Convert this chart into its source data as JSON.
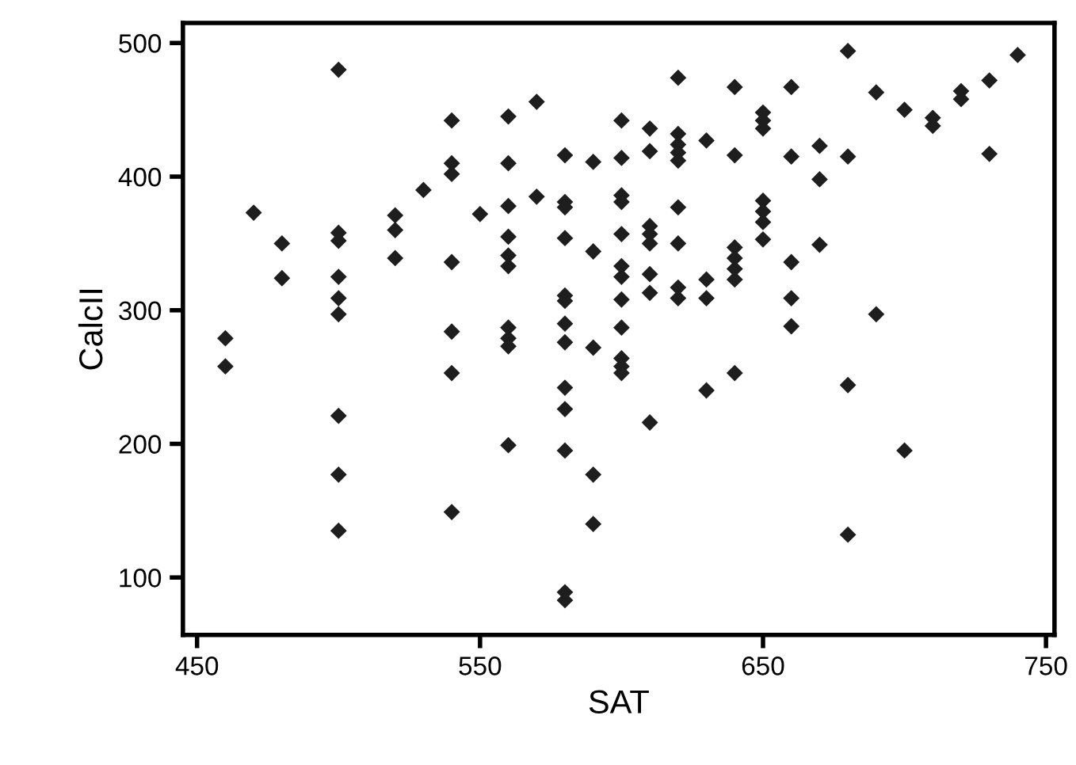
{
  "chart_data": {
    "type": "scatter",
    "xlabel": "SAT",
    "ylabel": "CalcII",
    "marker": "diamond",
    "grid": false,
    "legend": false,
    "xlim": [
      445,
      753
    ],
    "ylim": [
      57,
      515
    ],
    "xticks": [
      450,
      550,
      650,
      750
    ],
    "yticks": [
      100,
      200,
      300,
      400,
      500
    ],
    "series": [
      {
        "color": "#1e1e1e",
        "x": [
          460,
          460,
          470,
          480,
          480,
          500,
          500,
          500,
          500,
          500,
          500,
          500,
          500,
          500,
          520,
          520,
          520,
          530,
          540,
          540,
          540,
          540,
          540,
          540,
          540,
          550,
          560,
          560,
          560,
          560,
          560,
          560,
          560,
          560,
          560,
          560,
          570,
          570,
          580,
          580,
          580,
          580,
          580,
          580,
          580,
          580,
          580,
          580,
          580,
          580,
          580,
          590,
          590,
          590,
          590,
          590,
          600,
          600,
          600,
          600,
          600,
          600,
          600,
          600,
          600,
          600,
          600,
          600,
          610,
          610,
          610,
          610,
          610,
          610,
          610,
          610,
          620,
          620,
          620,
          620,
          620,
          620,
          620,
          620,
          620,
          630,
          630,
          630,
          630,
          640,
          640,
          640,
          640,
          640,
          640,
          640,
          650,
          650,
          650,
          650,
          650,
          650,
          650,
          660,
          660,
          660,
          660,
          660,
          670,
          670,
          670,
          680,
          680,
          680,
          680,
          690,
          690,
          700,
          700,
          710,
          710,
          720,
          720,
          730,
          730,
          740
        ],
        "values": [
          279,
          258,
          373,
          350,
          324,
          480,
          358,
          352,
          325,
          309,
          297,
          221,
          177,
          135,
          371,
          360,
          339,
          390,
          442,
          410,
          402,
          336,
          284,
          253,
          149,
          372,
          445,
          410,
          378,
          355,
          341,
          333,
          287,
          279,
          273,
          199,
          456,
          385,
          416,
          381,
          377,
          354,
          311,
          307,
          290,
          276,
          242,
          226,
          195,
          89,
          83,
          411,
          344,
          272,
          177,
          140,
          442,
          414,
          386,
          381,
          357,
          333,
          325,
          308,
          287,
          264,
          258,
          253,
          436,
          419,
          363,
          357,
          350,
          327,
          313,
          216,
          474,
          432,
          424,
          418,
          412,
          377,
          350,
          317,
          309,
          427,
          323,
          309,
          240,
          467,
          416,
          347,
          339,
          331,
          323,
          253,
          448,
          442,
          436,
          382,
          374,
          366,
          353,
          467,
          415,
          336,
          309,
          288,
          423,
          398,
          349,
          494,
          415,
          244,
          132,
          463,
          297,
          450,
          195,
          444,
          438,
          464,
          458,
          472,
          417,
          491
        ]
      }
    ]
  }
}
